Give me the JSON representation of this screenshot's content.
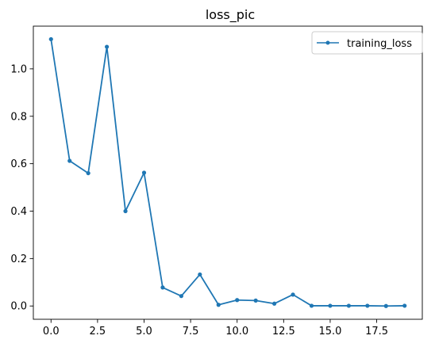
{
  "chart_data": {
    "type": "line",
    "title": "loss_pic",
    "xlabel": "",
    "ylabel": "",
    "xlim": [
      -0.95,
      19.95
    ],
    "ylim": [
      -0.056,
      1.18
    ],
    "xticks": [
      0.0,
      2.5,
      5.0,
      7.5,
      10.0,
      12.5,
      15.0,
      17.5
    ],
    "xtick_labels": [
      "0.0",
      "2.5",
      "5.0",
      "7.5",
      "10.0",
      "12.5",
      "15.0",
      "17.5"
    ],
    "yticks": [
      0.0,
      0.2,
      0.4,
      0.6,
      0.8,
      1.0
    ],
    "ytick_labels": [
      "0.0",
      "0.2",
      "0.4",
      "0.6",
      "0.8",
      "1.0"
    ],
    "grid": false,
    "legend_position": "top-right",
    "series": [
      {
        "name": "training_loss",
        "color": "#1f77b4",
        "marker": "dot",
        "x": [
          0,
          1,
          2,
          3,
          4,
          5,
          6,
          7,
          8,
          9,
          10,
          11,
          12,
          13,
          14,
          15,
          16,
          17,
          18,
          19
        ],
        "values": [
          1.125,
          0.612,
          0.56,
          1.093,
          0.4,
          0.562,
          0.078,
          0.042,
          0.133,
          0.005,
          0.025,
          0.023,
          0.01,
          0.048,
          0.001,
          0.001,
          0.001,
          0.001,
          0.0,
          0.001
        ]
      }
    ]
  }
}
